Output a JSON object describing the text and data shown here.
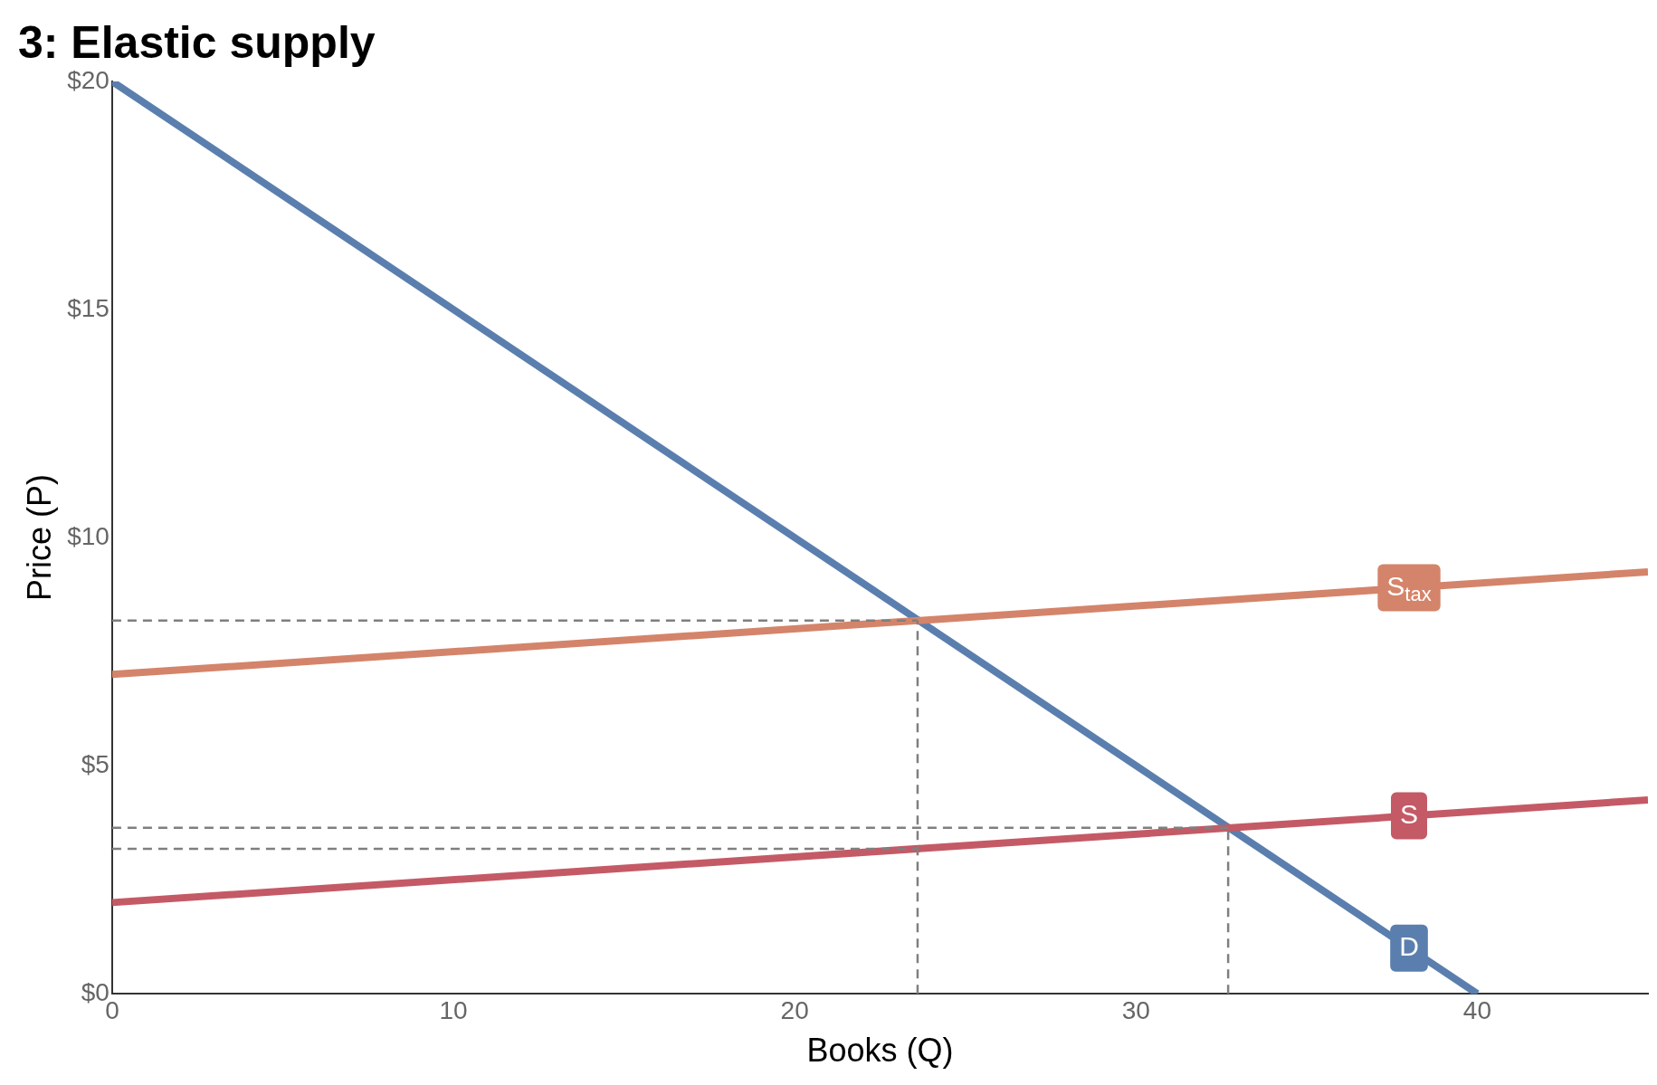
{
  "chart_data": {
    "type": "line",
    "title": "3: Elastic supply",
    "xlabel": "Books (Q)",
    "ylabel": "Price (P)",
    "xlim": [
      0,
      45
    ],
    "xticks": [
      0,
      10,
      20,
      30,
      40
    ],
    "ylim": [
      0,
      20
    ],
    "yticks": [
      {
        "value": 0,
        "label": "$0"
      },
      {
        "value": 5,
        "label": "$5"
      },
      {
        "value": 10,
        "label": "$10"
      },
      {
        "value": 15,
        "label": "$15"
      },
      {
        "value": 20,
        "label": "$20"
      }
    ],
    "grid": false,
    "legend": false,
    "marker": "none",
    "series": [
      {
        "x": [
          0,
          23.6
        ],
        "values": [
          8.18,
          8.18
        ],
        "color": "#7f7f7f",
        "line_style": "dashed"
      },
      {
        "x": [
          0,
          32.7
        ],
        "values": [
          3.64,
          3.64
        ],
        "color": "#7f7f7f",
        "line_style": "dashed"
      },
      {
        "x": [
          0,
          23.6
        ],
        "values": [
          3.18,
          3.18
        ],
        "color": "#7f7f7f",
        "line_style": "dashed"
      },
      {
        "x": [
          23.6,
          23.6
        ],
        "values": [
          0,
          8.18
        ],
        "color": "#7f7f7f",
        "line_style": "dashed"
      },
      {
        "x": [
          32.7,
          32.7
        ],
        "values": [
          0,
          3.64
        ],
        "color": "#7f7f7f",
        "line_style": "dashed"
      },
      {
        "name": "S$_{tax}$",
        "x": [
          0,
          45
        ],
        "values": [
          7,
          9.25
        ],
        "color": "#d4846a",
        "line_style": "solid"
      },
      {
        "name": "S",
        "x": [
          0,
          45
        ],
        "values": [
          2,
          4.25
        ],
        "color": "#c45a66",
        "line_style": "solid"
      },
      {
        "name": "D",
        "x": [
          0,
          40
        ],
        "values": [
          20,
          0
        ],
        "color": "#5a7fae",
        "line_style": "solid"
      }
    ]
  }
}
